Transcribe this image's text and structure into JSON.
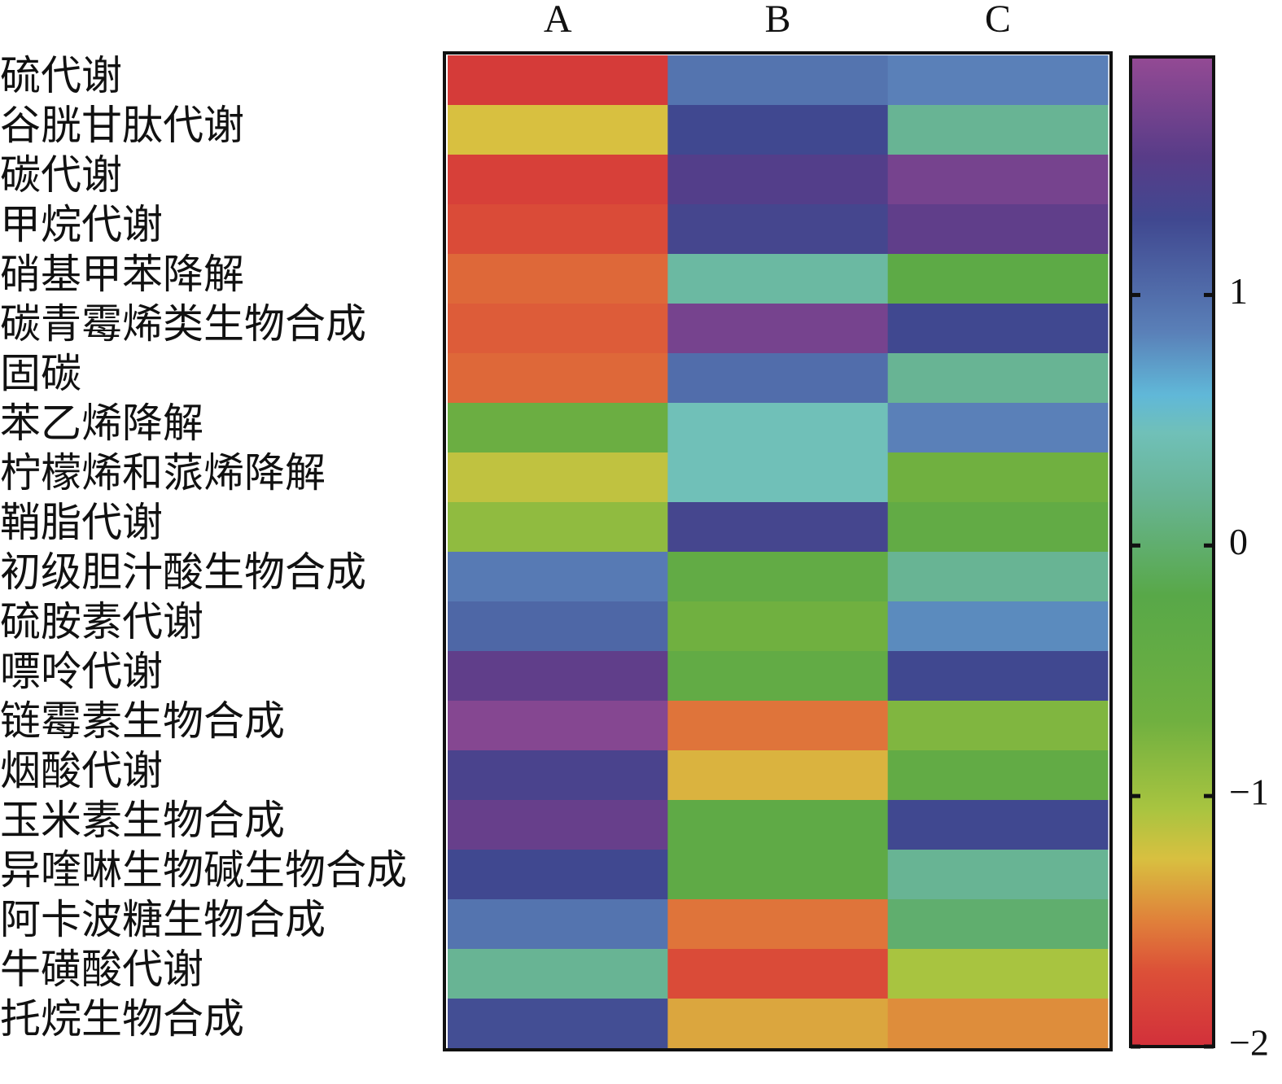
{
  "chart_data": {
    "type": "heatmap",
    "columns": [
      "A",
      "B",
      "C"
    ],
    "rows": [
      "硫代谢",
      "谷胱甘肽代谢",
      "碳代谢",
      "甲烷代谢",
      "硝基甲苯降解",
      "碳青霉烯类生物合成",
      "固碳",
      "苯乙烯降解",
      "柠檬烯和蒎烯降解",
      "鞘脂代谢",
      "初级胆汁酸生物合成",
      "硫胺素代谢",
      "嘌呤代谢",
      "链霉素生物合成",
      "烟酸代谢",
      "玉米素生物合成",
      "异喹啉生物碱生物合成",
      "阿卡波糖生物合成",
      "牛磺酸代谢",
      "托烷生物合成"
    ],
    "values": [
      [
        -1.9,
        0.95,
        0.85
      ],
      [
        -1.25,
        1.3,
        0.2
      ],
      [
        -1.85,
        1.5,
        1.75
      ],
      [
        -1.75,
        1.35,
        1.6
      ],
      [
        -1.6,
        0.3,
        -0.3
      ],
      [
        -1.65,
        1.75,
        1.3
      ],
      [
        -1.6,
        1.0,
        0.2
      ],
      [
        -0.6,
        0.45,
        0.85
      ],
      [
        -1.15,
        0.45,
        -0.7
      ],
      [
        -0.9,
        1.35,
        -0.4
      ],
      [
        0.9,
        -0.4,
        0.2
      ],
      [
        1.05,
        -0.7,
        0.8
      ],
      [
        1.6,
        -0.4,
        1.3
      ],
      [
        1.85,
        -1.55,
        -0.8
      ],
      [
        1.4,
        -1.3,
        -0.4
      ],
      [
        1.65,
        -0.35,
        1.3
      ],
      [
        1.3,
        -0.35,
        0.2
      ],
      [
        0.95,
        -1.55,
        0
      ],
      [
        0.2,
        -1.75,
        -1.05
      ],
      [
        1.25,
        -1.35,
        -1.45
      ]
    ],
    "zlim": [
      -2,
      1.95
    ],
    "zticks": [
      1,
      0,
      {
        "value": -1,
        "label": "−1"
      },
      {
        "value": -2,
        "label": "−2"
      }
    ],
    "colorscale": [
      [
        -2,
        "#d2303a"
      ],
      [
        -1.7,
        "#dc5038"
      ],
      [
        -1.5,
        "#e0803a"
      ],
      [
        -1.25,
        "#d8c040"
      ],
      [
        -1.05,
        "#a8c440"
      ],
      [
        -0.7,
        "#70b040"
      ],
      [
        -0.2,
        "#58a848"
      ],
      [
        0.2,
        "#68b494"
      ],
      [
        0.45,
        "#70c0b8"
      ],
      [
        0.6,
        "#60b8d8"
      ],
      [
        0.85,
        "#5a80b8"
      ],
      [
        1.3,
        "#404890"
      ],
      [
        1.55,
        "#583c88"
      ],
      [
        1.95,
        "#944a94"
      ]
    ]
  }
}
